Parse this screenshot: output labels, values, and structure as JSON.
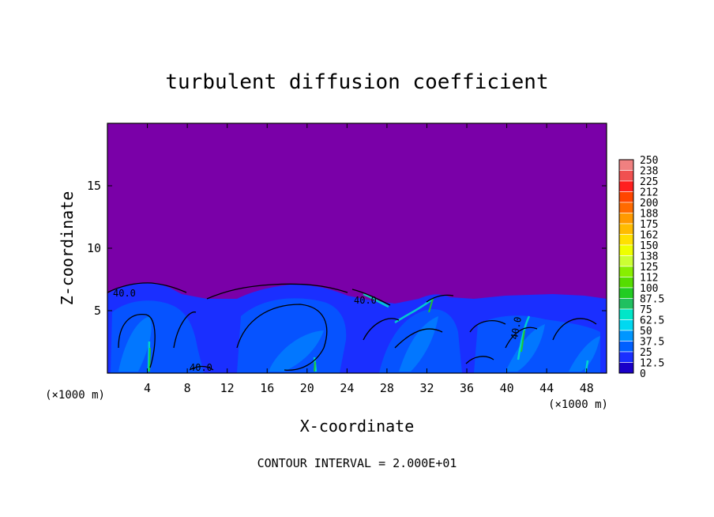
{
  "chart_data": {
    "type": "heatmap",
    "title": "turbulent diffusion coefficient",
    "xlabel": "X-coordinate",
    "ylabel": "Z-coordinate",
    "x_unit": "(×1000 m)",
    "xlim": [
      0,
      50
    ],
    "ylim": [
      0,
      20
    ],
    "x_ticks": [
      4,
      8,
      12,
      16,
      20,
      24,
      28,
      32,
      36,
      40,
      44,
      48
    ],
    "y_ticks": [
      5,
      10,
      15
    ],
    "colorbar": {
      "labels": [
        "250",
        "238",
        "225",
        "212",
        "200",
        "188",
        "175",
        "162",
        "150",
        "138",
        "125",
        "112",
        "100",
        "87.5",
        "75",
        "62.5",
        "50",
        "37.5",
        "25",
        "12.5",
        "0"
      ],
      "colors": [
        "#f08080",
        "#f05050",
        "#ff2020",
        "#ff4500",
        "#ff6a00",
        "#ff9900",
        "#ffbb00",
        "#ffe000",
        "#eeff00",
        "#ccff33",
        "#88ee00",
        "#55dd00",
        "#22cc22",
        "#20c060",
        "#00e6c8",
        "#00d8f0",
        "#0096ff",
        "#0060ff",
        "#1a2fff",
        "#1a00c8",
        "#7a00a8"
      ]
    },
    "contour_labels": [
      "40.0",
      "40.0",
      "40.0",
      "40.0"
    ],
    "footnote": "CONTOUR INTERVAL = 2.000E+01"
  }
}
